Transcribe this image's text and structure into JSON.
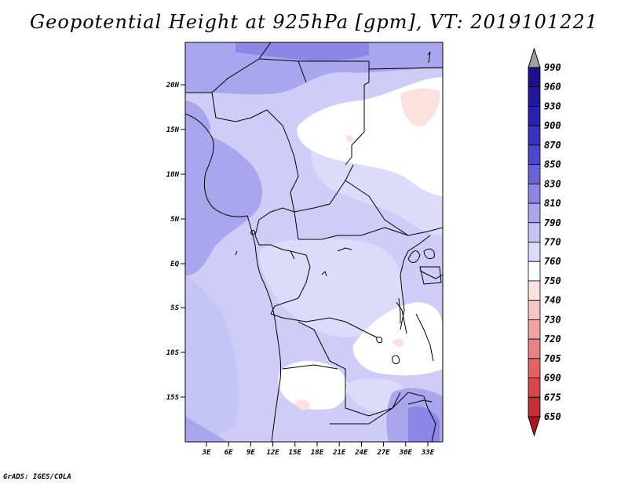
{
  "title": "Geopotential Height at 925hPa [gpm], VT: 2019101221",
  "credit": "GrADS: IGES/COLA",
  "map": {
    "region": "Central Africa",
    "lon_labels": [
      "3E",
      "6E",
      "9E",
      "12E",
      "15E",
      "18E",
      "21E",
      "24E",
      "27E",
      "30E",
      "33E"
    ],
    "lat_labels": [
      "20N",
      "15N",
      "10N",
      "5N",
      "EQ",
      "5S",
      "10S",
      "15S"
    ]
  },
  "colorbar": {
    "units": "gpm",
    "levels": [
      "990",
      "960",
      "930",
      "900",
      "870",
      "850",
      "830",
      "810",
      "790",
      "770",
      "760",
      "750",
      "740",
      "730",
      "720",
      "705",
      "690",
      "675",
      "650"
    ],
    "colors": {
      "over": "#a0a0a0",
      "under": "#b0141c",
      "c990": "#1c1090",
      "c960": "#2418a0",
      "c930": "#2c20b0",
      "c900": "#3a32c0",
      "c870": "#5046cc",
      "c850": "#6a62d8",
      "c830": "#8c86e4",
      "c810": "#aaa6ee",
      "c790": "#c6c4f6",
      "c770": "#dcdcfa",
      "c760": "#ffffff",
      "c750": "#fde0e0",
      "c740": "#f8c4c4",
      "c730": "#f2a4a4",
      "c720": "#ea8282",
      "c705": "#e06464",
      "c690": "#d44848",
      "c675": "#c43030",
      "c650": "#b0141c"
    }
  }
}
